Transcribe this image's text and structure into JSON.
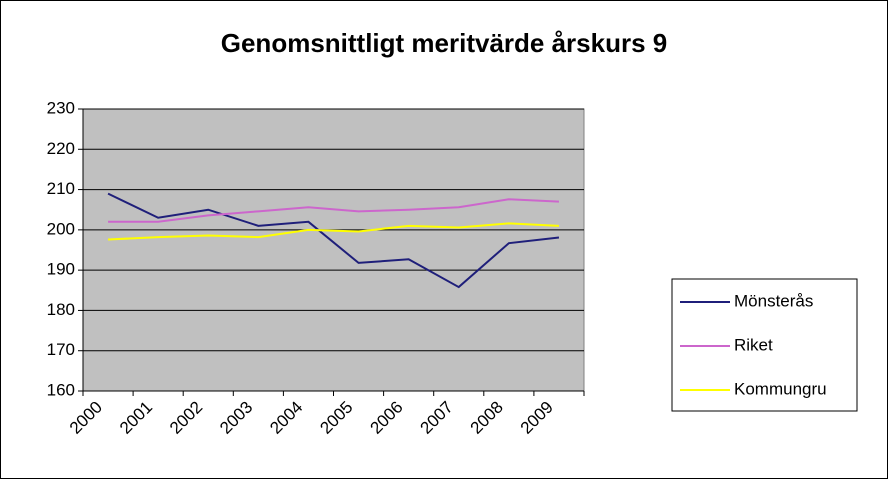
{
  "chart_data": {
    "type": "line",
    "title": "Genomsnittligt meritvärde årskurs 9",
    "categories": [
      "2000",
      "2001",
      "2002",
      "2003",
      "2004",
      "2005",
      "2006",
      "2007",
      "2008",
      "2009"
    ],
    "series": [
      {
        "name": "Mönsterås",
        "color": "#1f1f7a",
        "values": [
          209,
          203,
          205,
          201,
          202,
          191.8,
          192.7,
          185.8,
          196.7,
          198.1
        ]
      },
      {
        "name": "Riket",
        "color": "#cc66cc",
        "values": [
          202,
          202,
          203.6,
          204.6,
          205.6,
          204.6,
          205,
          205.6,
          207.6,
          207
        ]
      },
      {
        "name": "Kommungru",
        "color": "#ffff00",
        "values": [
          197.6,
          198.2,
          198.6,
          198.2,
          200,
          199.6,
          201,
          200.6,
          201.6,
          201
        ]
      }
    ],
    "ylim": [
      160,
      230
    ],
    "yticks": [
      160,
      170,
      180,
      190,
      200,
      210,
      220,
      230
    ],
    "grid": true,
    "legend": "right"
  }
}
